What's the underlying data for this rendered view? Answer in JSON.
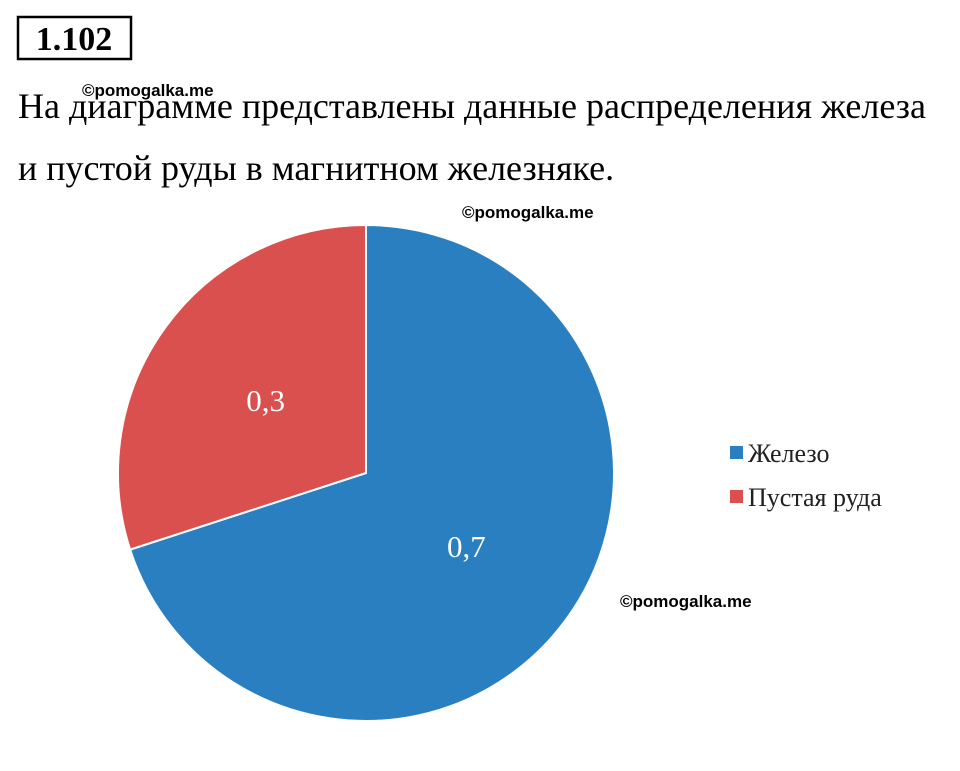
{
  "problem": "1.102",
  "text_lines": [
    "На диаграмме представлены данные распределения железа",
    "и пустой руды в магнитном железняке."
  ],
  "watermarks": [
    "©pomogalka.me",
    "©pomogalka.me",
    "©pomogalka.me"
  ],
  "chart_data": {
    "type": "pie",
    "categories": [
      "Железо",
      "Пустая руда"
    ],
    "values": [
      0.7,
      0.3
    ],
    "value_labels": [
      "0,7",
      "0,3"
    ],
    "colors": [
      "#2a7fc0",
      "#d9504e"
    ],
    "legend": "right"
  }
}
